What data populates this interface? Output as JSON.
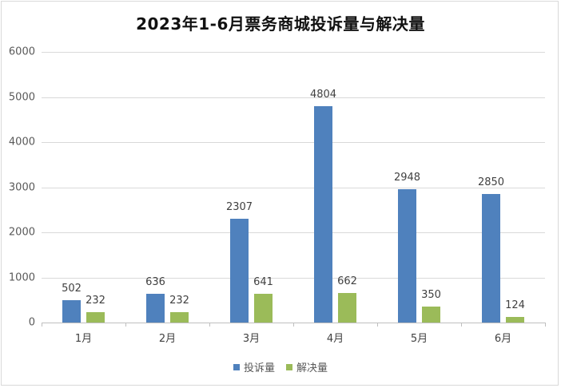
{
  "chart_data": {
    "type": "bar",
    "title": "2023年1-6月票务商城投诉量与解决量",
    "categories": [
      "1月",
      "2月",
      "3月",
      "4月",
      "5月",
      "6月"
    ],
    "series": [
      {
        "name": "投诉量",
        "color": "#4f81bd",
        "values": [
          502,
          636,
          2307,
          4804,
          2948,
          2850
        ]
      },
      {
        "name": "解决量",
        "color": "#9bbb59",
        "values": [
          232,
          232,
          641,
          662,
          350,
          124
        ]
      }
    ],
    "xlabel": "",
    "ylabel": "",
    "ylim": [
      0,
      6000
    ],
    "yticks": [
      0,
      1000,
      2000,
      3000,
      4000,
      5000,
      6000
    ],
    "grid": true,
    "legend_position": "bottom",
    "data_labels": true
  }
}
